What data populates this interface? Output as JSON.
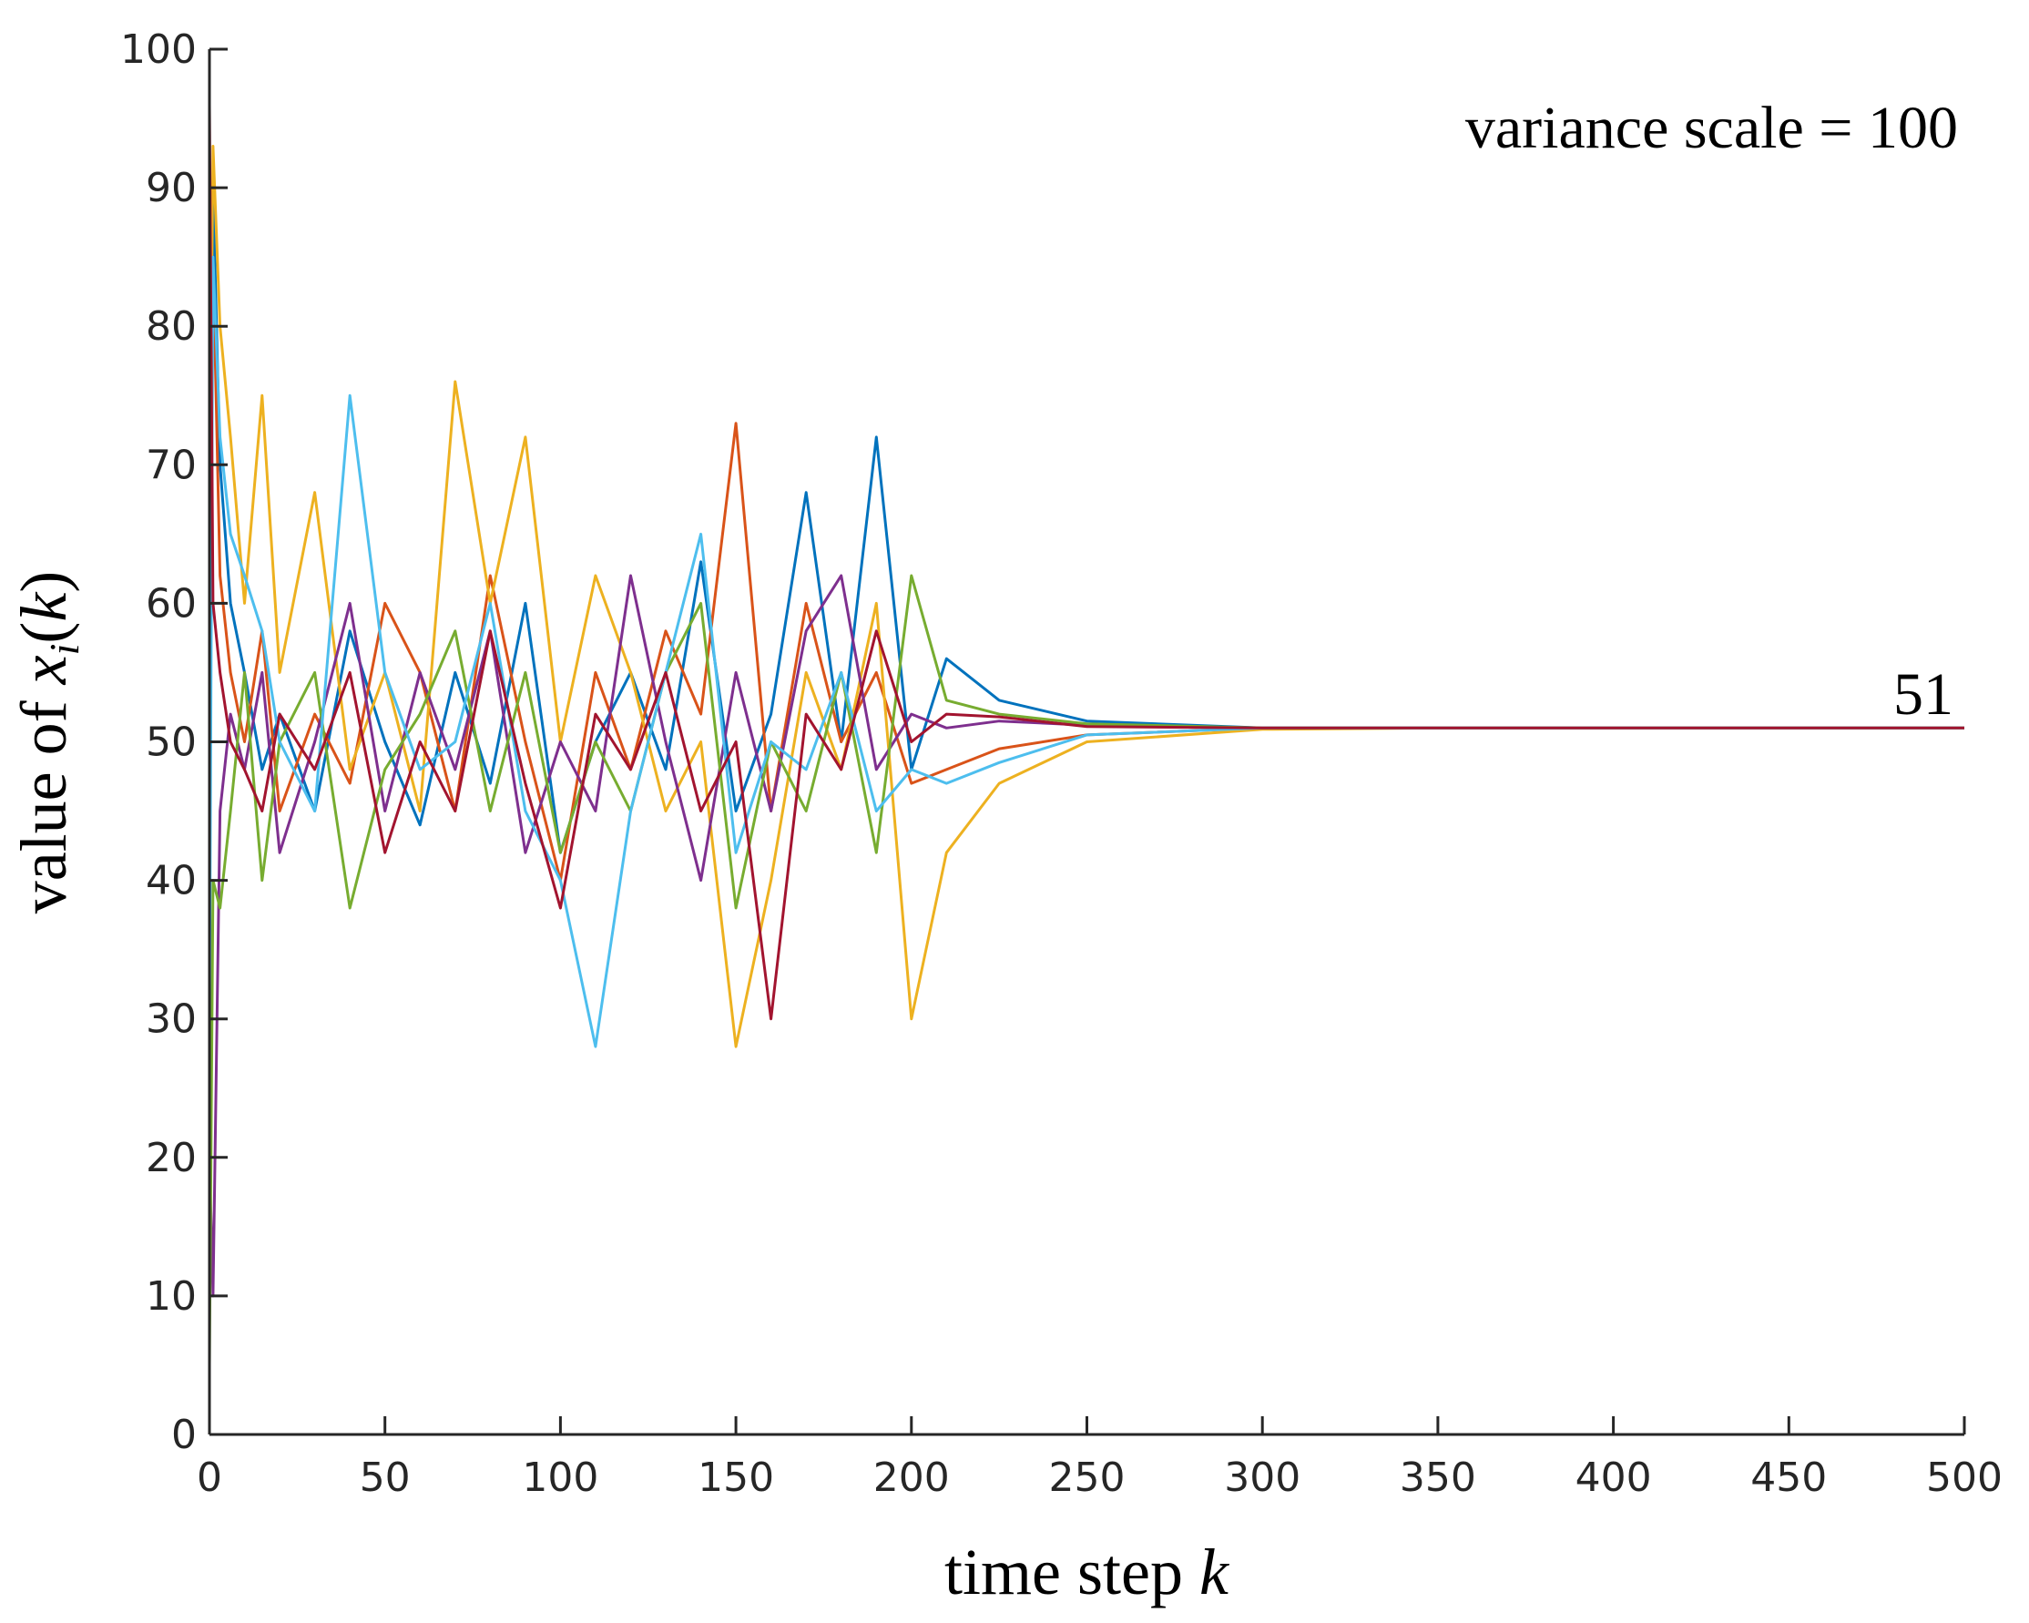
{
  "chart_data": {
    "type": "line",
    "annotations": [
      "variance scale = 100",
      "51"
    ],
    "xlabel": [
      "time step ",
      "k"
    ],
    "ylabel": [
      "value of ",
      "x",
      "i",
      "(",
      "k",
      ")"
    ],
    "xlim": [
      0,
      500
    ],
    "ylim": [
      0,
      100
    ],
    "xticks": [
      0,
      50,
      100,
      150,
      200,
      250,
      300,
      350,
      400,
      450,
      500
    ],
    "yticks": [
      0,
      10,
      20,
      30,
      40,
      50,
      60,
      70,
      80,
      90,
      100
    ],
    "grid": false,
    "x": [
      0,
      1,
      3,
      6,
      10,
      15,
      20,
      30,
      40,
      50,
      60,
      70,
      80,
      90,
      100,
      110,
      120,
      130,
      140,
      150,
      160,
      170,
      180,
      190,
      200,
      210,
      225,
      250,
      300,
      350,
      400,
      500
    ],
    "series": [
      {
        "color": "#0072BD",
        "values": [
          45,
          90,
          70,
          60,
          55,
          48,
          52,
          45,
          58,
          50,
          44,
          55,
          47,
          60,
          42,
          50,
          55,
          48,
          63,
          45,
          52,
          68,
          50,
          72,
          48,
          56,
          53,
          51.5,
          51,
          51,
          51,
          51
        ]
      },
      {
        "color": "#D95319",
        "values": [
          75,
          85,
          62,
          55,
          50,
          58,
          45,
          52,
          47,
          60,
          55,
          45,
          62,
          50,
          40,
          55,
          48,
          58,
          52,
          73,
          45,
          60,
          50,
          55,
          47,
          48,
          49.5,
          50.5,
          51,
          51,
          51,
          51
        ]
      },
      {
        "color": "#EDB120",
        "values": [
          65,
          93,
          80,
          72,
          60,
          75,
          55,
          68,
          48,
          55,
          45,
          76,
          60,
          72,
          50,
          62,
          55,
          45,
          50,
          28,
          40,
          55,
          48,
          60,
          30,
          42,
          47,
          50,
          50.9,
          51,
          51,
          51
        ]
      },
      {
        "color": "#7E2F8E",
        "values": [
          20,
          10,
          45,
          52,
          48,
          55,
          42,
          50,
          60,
          45,
          55,
          48,
          58,
          42,
          50,
          45,
          62,
          50,
          40,
          55,
          45,
          58,
          62,
          48,
          52,
          51,
          51.5,
          51.2,
          51,
          51,
          51,
          51
        ]
      },
      {
        "color": "#77AC30",
        "values": [
          5,
          40,
          38,
          45,
          55,
          40,
          50,
          55,
          38,
          48,
          52,
          58,
          45,
          55,
          42,
          50,
          45,
          55,
          60,
          38,
          50,
          45,
          55,
          42,
          62,
          53,
          52,
          51.3,
          51,
          51,
          51,
          51
        ]
      },
      {
        "color": "#4DBEEE",
        "values": [
          30,
          85,
          72,
          65,
          62,
          58,
          50,
          45,
          75,
          55,
          48,
          50,
          60,
          45,
          40,
          28,
          45,
          55,
          65,
          42,
          50,
          48,
          55,
          45,
          48,
          47,
          48.5,
          50.5,
          51,
          51,
          51,
          51
        ]
      },
      {
        "color": "#A2142F",
        "values": [
          96,
          60,
          55,
          50,
          48,
          45,
          52,
          48,
          55,
          42,
          50,
          45,
          58,
          47,
          38,
          52,
          48,
          55,
          45,
          50,
          30,
          52,
          48,
          58,
          50,
          52,
          51.8,
          51.1,
          51,
          51,
          51,
          51
        ]
      }
    ]
  }
}
